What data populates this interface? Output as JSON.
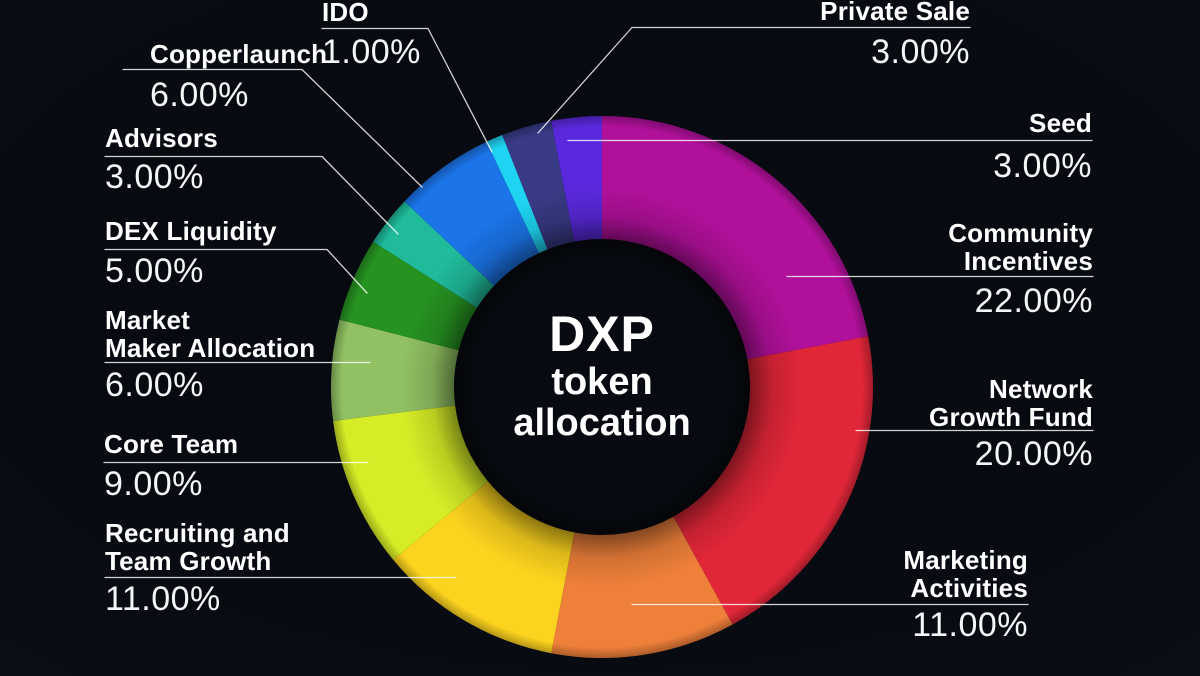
{
  "chart_data": {
    "type": "pie",
    "subtype": "donut",
    "title": "DXP token allocation",
    "title_lines": [
      "DXP",
      "token",
      "allocation"
    ],
    "start_angle": "12 o'clock",
    "direction": "clockwise",
    "legend_position": "callout-labels",
    "segments": [
      {
        "label": "Community Incentives",
        "label_lines": [
          "Community",
          "Incentives"
        ],
        "value": 22,
        "pct_label": "22.00%",
        "color": "#b1109b"
      },
      {
        "label": "Network Growth Fund",
        "label_lines": [
          "Network",
          "Growth Fund"
        ],
        "value": 20,
        "pct_label": "20.00%",
        "color": "#e12638"
      },
      {
        "label": "Marketing Activities",
        "label_lines": [
          "Marketing",
          "Activities"
        ],
        "value": 11,
        "pct_label": "11.00%",
        "color": "#ef803a"
      },
      {
        "label": "Recruiting and Team Growth",
        "label_lines": [
          "Recruiting and",
          "Team Growth"
        ],
        "value": 11,
        "pct_label": "11.00%",
        "color": "#fcd31e"
      },
      {
        "label": "Core Team",
        "label_lines": [
          "Core Team"
        ],
        "value": 9,
        "pct_label": "9.00%",
        "color": "#d6ec26"
      },
      {
        "label": "Market Maker Allocation",
        "label_lines": [
          "Market",
          "Maker Allocation"
        ],
        "value": 6,
        "pct_label": "6.00%",
        "color": "#91c162"
      },
      {
        "label": "DEX Liquidity",
        "label_lines": [
          "DEX Liquidity"
        ],
        "value": 5,
        "pct_label": "5.00%",
        "color": "#269321"
      },
      {
        "label": "Advisors",
        "label_lines": [
          "Advisors"
        ],
        "value": 3,
        "pct_label": "3.00%",
        "color": "#1fbb9b"
      },
      {
        "label": "Copperlaunch",
        "label_lines": [
          "Copperlaunch"
        ],
        "value": 6,
        "pct_label": "6.00%",
        "color": "#1b74e8"
      },
      {
        "label": "IDO",
        "label_lines": [
          "IDO"
        ],
        "value": 1,
        "pct_label": "1.00%",
        "color": "#1ed4f2"
      },
      {
        "label": "Private Sale",
        "label_lines": [
          "Private Sale"
        ],
        "value": 3,
        "pct_label": "3.00%",
        "color": "#383a85"
      },
      {
        "label": "Seed",
        "label_lines": [
          "Seed"
        ],
        "value": 3,
        "pct_label": "3.00%",
        "color": "#5a29dd"
      }
    ]
  },
  "colors": {
    "background": "#0b0f16",
    "text": "#ffffff",
    "leader_line": "#ffffff"
  }
}
